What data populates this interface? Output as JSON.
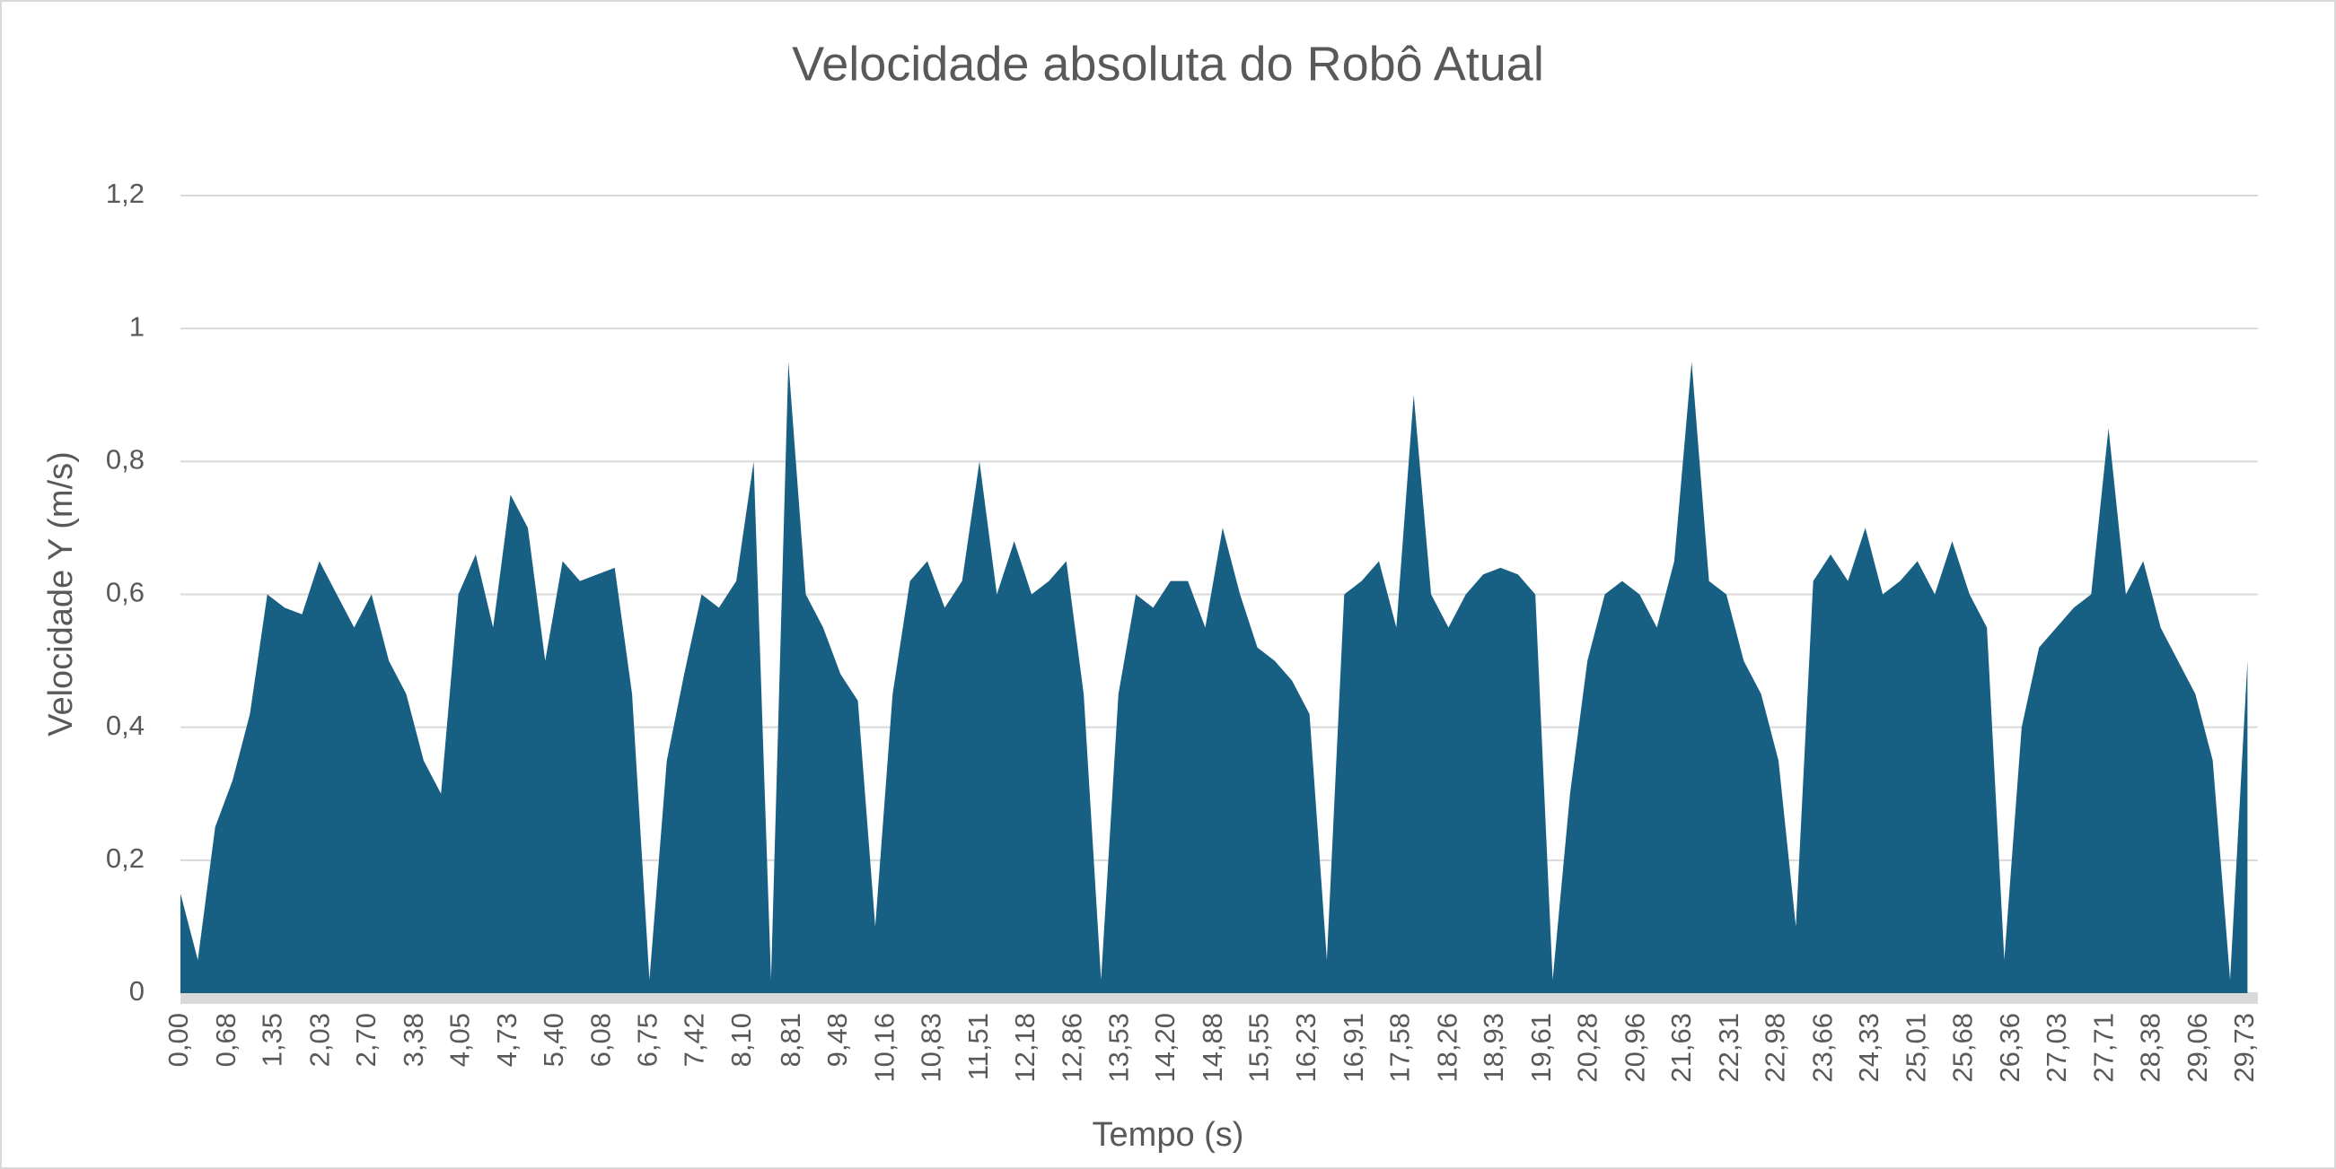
{
  "chart_data": {
    "type": "area",
    "title": "Velocidade absoluta do Robô Atual",
    "x_label": "Tempo (s)",
    "y_label": "Velocidade Y (m/s)",
    "color": "#175f83",
    "grid": true,
    "xlim": [
      0,
      29.9
    ],
    "ylim": [
      0,
      1.2
    ],
    "yticks": [
      0,
      {
        "value": 0.2,
        "label": "0,2"
      },
      {
        "value": 0.4,
        "label": "0,4"
      },
      {
        "value": 0.6,
        "label": "0,6"
      },
      {
        "value": 0.8,
        "label": "0,8"
      },
      1,
      {
        "value": 1.2,
        "label": "1,2"
      }
    ],
    "xticks": [
      {
        "value": 0,
        "label": "0,00"
      },
      {
        "value": 0.68,
        "label": "0,68"
      },
      {
        "value": 1.35,
        "label": "1,35"
      },
      {
        "value": 2.03,
        "label": "2,03"
      },
      {
        "value": 2.7,
        "label": "2,70"
      },
      {
        "value": 3.38,
        "label": "3,38"
      },
      {
        "value": 4.05,
        "label": "4,05"
      },
      {
        "value": 4.73,
        "label": "4,73"
      },
      {
        "value": 5.4,
        "label": "5,40"
      },
      {
        "value": 6.08,
        "label": "6,08"
      },
      {
        "value": 6.75,
        "label": "6,75"
      },
      {
        "value": 7.42,
        "label": "7,42"
      },
      {
        "value": 8.1,
        "label": "8,10"
      },
      {
        "value": 8.81,
        "label": "8,81"
      },
      {
        "value": 9.48,
        "label": "9,48"
      },
      {
        "value": 10.16,
        "label": "10,16"
      },
      {
        "value": 10.83,
        "label": "10,83"
      },
      {
        "value": 11.51,
        "label": "11,51"
      },
      {
        "value": 12.18,
        "label": "12,18"
      },
      {
        "value": 12.86,
        "label": "12,86"
      },
      {
        "value": 13.53,
        "label": "13,53"
      },
      {
        "value": 14.2,
        "label": "14,20"
      },
      {
        "value": 14.88,
        "label": "14,88"
      },
      {
        "value": 15.55,
        "label": "15,55"
      },
      {
        "value": 16.23,
        "label": "16,23"
      },
      {
        "value": 16.91,
        "label": "16,91"
      },
      {
        "value": 17.58,
        "label": "17,58"
      },
      {
        "value": 18.26,
        "label": "18,26"
      },
      {
        "value": 18.93,
        "label": "18,93"
      },
      {
        "value": 19.61,
        "label": "19,61"
      },
      {
        "value": 20.28,
        "label": "20,28"
      },
      {
        "value": 20.96,
        "label": "20,96"
      },
      {
        "value": 21.63,
        "label": "21,63"
      },
      {
        "value": 22.31,
        "label": "22,31"
      },
      {
        "value": 22.98,
        "label": "22,98"
      },
      {
        "value": 23.66,
        "label": "23,66"
      },
      {
        "value": 24.33,
        "label": "24,33"
      },
      {
        "value": 25.01,
        "label": "25,01"
      },
      {
        "value": 25.68,
        "label": "25,68"
      },
      {
        "value": 26.36,
        "label": "26,36"
      },
      {
        "value": 27.03,
        "label": "27,03"
      },
      {
        "value": 27.71,
        "label": "27,71"
      },
      {
        "value": 28.38,
        "label": "28,38"
      },
      {
        "value": 29.06,
        "label": "29,06"
      },
      {
        "value": 29.73,
        "label": "29,73"
      }
    ],
    "x": [
      0,
      0.25,
      0.5,
      0.75,
      1,
      1.25,
      1.5,
      1.75,
      2,
      2.25,
      2.5,
      2.75,
      3,
      3.25,
      3.5,
      3.75,
      4,
      4.25,
      4.5,
      4.75,
      5,
      5.25,
      5.5,
      5.75,
      6,
      6.25,
      6.5,
      6.75,
      7,
      7.25,
      7.5,
      7.75,
      8,
      8.25,
      8.5,
      8.75,
      9,
      9.25,
      9.5,
      9.75,
      10,
      10.25,
      10.5,
      10.75,
      11,
      11.25,
      11.5,
      11.75,
      12,
      12.25,
      12.5,
      12.75,
      13,
      13.25,
      13.5,
      13.75,
      14,
      14.25,
      14.5,
      14.75,
      15,
      15.25,
      15.5,
      15.75,
      16,
      16.25,
      16.5,
      16.75,
      17,
      17.25,
      17.5,
      17.75,
      18,
      18.25,
      18.5,
      18.75,
      19,
      19.25,
      19.5,
      19.75,
      20,
      20.25,
      20.5,
      20.75,
      21,
      21.25,
      21.5,
      21.75,
      22,
      22.25,
      22.5,
      22.75,
      23,
      23.25,
      23.5,
      23.75,
      24,
      24.25,
      24.5,
      24.75,
      25,
      25.25,
      25.5,
      25.75,
      26,
      26.25,
      26.5,
      26.75,
      27,
      27.25,
      27.5,
      27.75,
      28,
      28.25,
      28.5,
      28.75,
      29,
      29.25,
      29.5,
      29.75
    ],
    "values": [
      0.15,
      0.05,
      0.25,
      0.32,
      0.42,
      0.6,
      0.58,
      0.57,
      0.65,
      0.6,
      0.55,
      0.6,
      0.5,
      0.45,
      0.35,
      0.3,
      0.6,
      0.66,
      0.55,
      0.75,
      0.7,
      0.5,
      0.65,
      0.62,
      0.63,
      0.64,
      0.45,
      0.02,
      0.35,
      0.48,
      0.6,
      0.58,
      0.62,
      0.8,
      0.02,
      0.95,
      0.6,
      0.55,
      0.48,
      0.44,
      0.1,
      0.45,
      0.62,
      0.65,
      0.58,
      0.62,
      0.8,
      0.6,
      0.68,
      0.6,
      0.62,
      0.65,
      0.45,
      0.02,
      0.45,
      0.6,
      0.58,
      0.62,
      0.62,
      0.55,
      0.7,
      0.6,
      0.52,
      0.5,
      0.47,
      0.42,
      0.05,
      0.6,
      0.62,
      0.65,
      0.55,
      0.9,
      0.6,
      0.55,
      0.6,
      0.63,
      0.64,
      0.63,
      0.6,
      0.02,
      0.3,
      0.5,
      0.6,
      0.62,
      0.6,
      0.55,
      0.65,
      0.95,
      0.62,
      0.6,
      0.5,
      0.45,
      0.35,
      0.1,
      0.62,
      0.66,
      0.62,
      0.7,
      0.6,
      0.62,
      0.65,
      0.6,
      0.68,
      0.6,
      0.55,
      0.05,
      0.4,
      0.52,
      0.55,
      0.58,
      0.6,
      0.85,
      0.6,
      0.65,
      0.55,
      0.5,
      0.45,
      0.35,
      0.02,
      0.5
    ]
  }
}
